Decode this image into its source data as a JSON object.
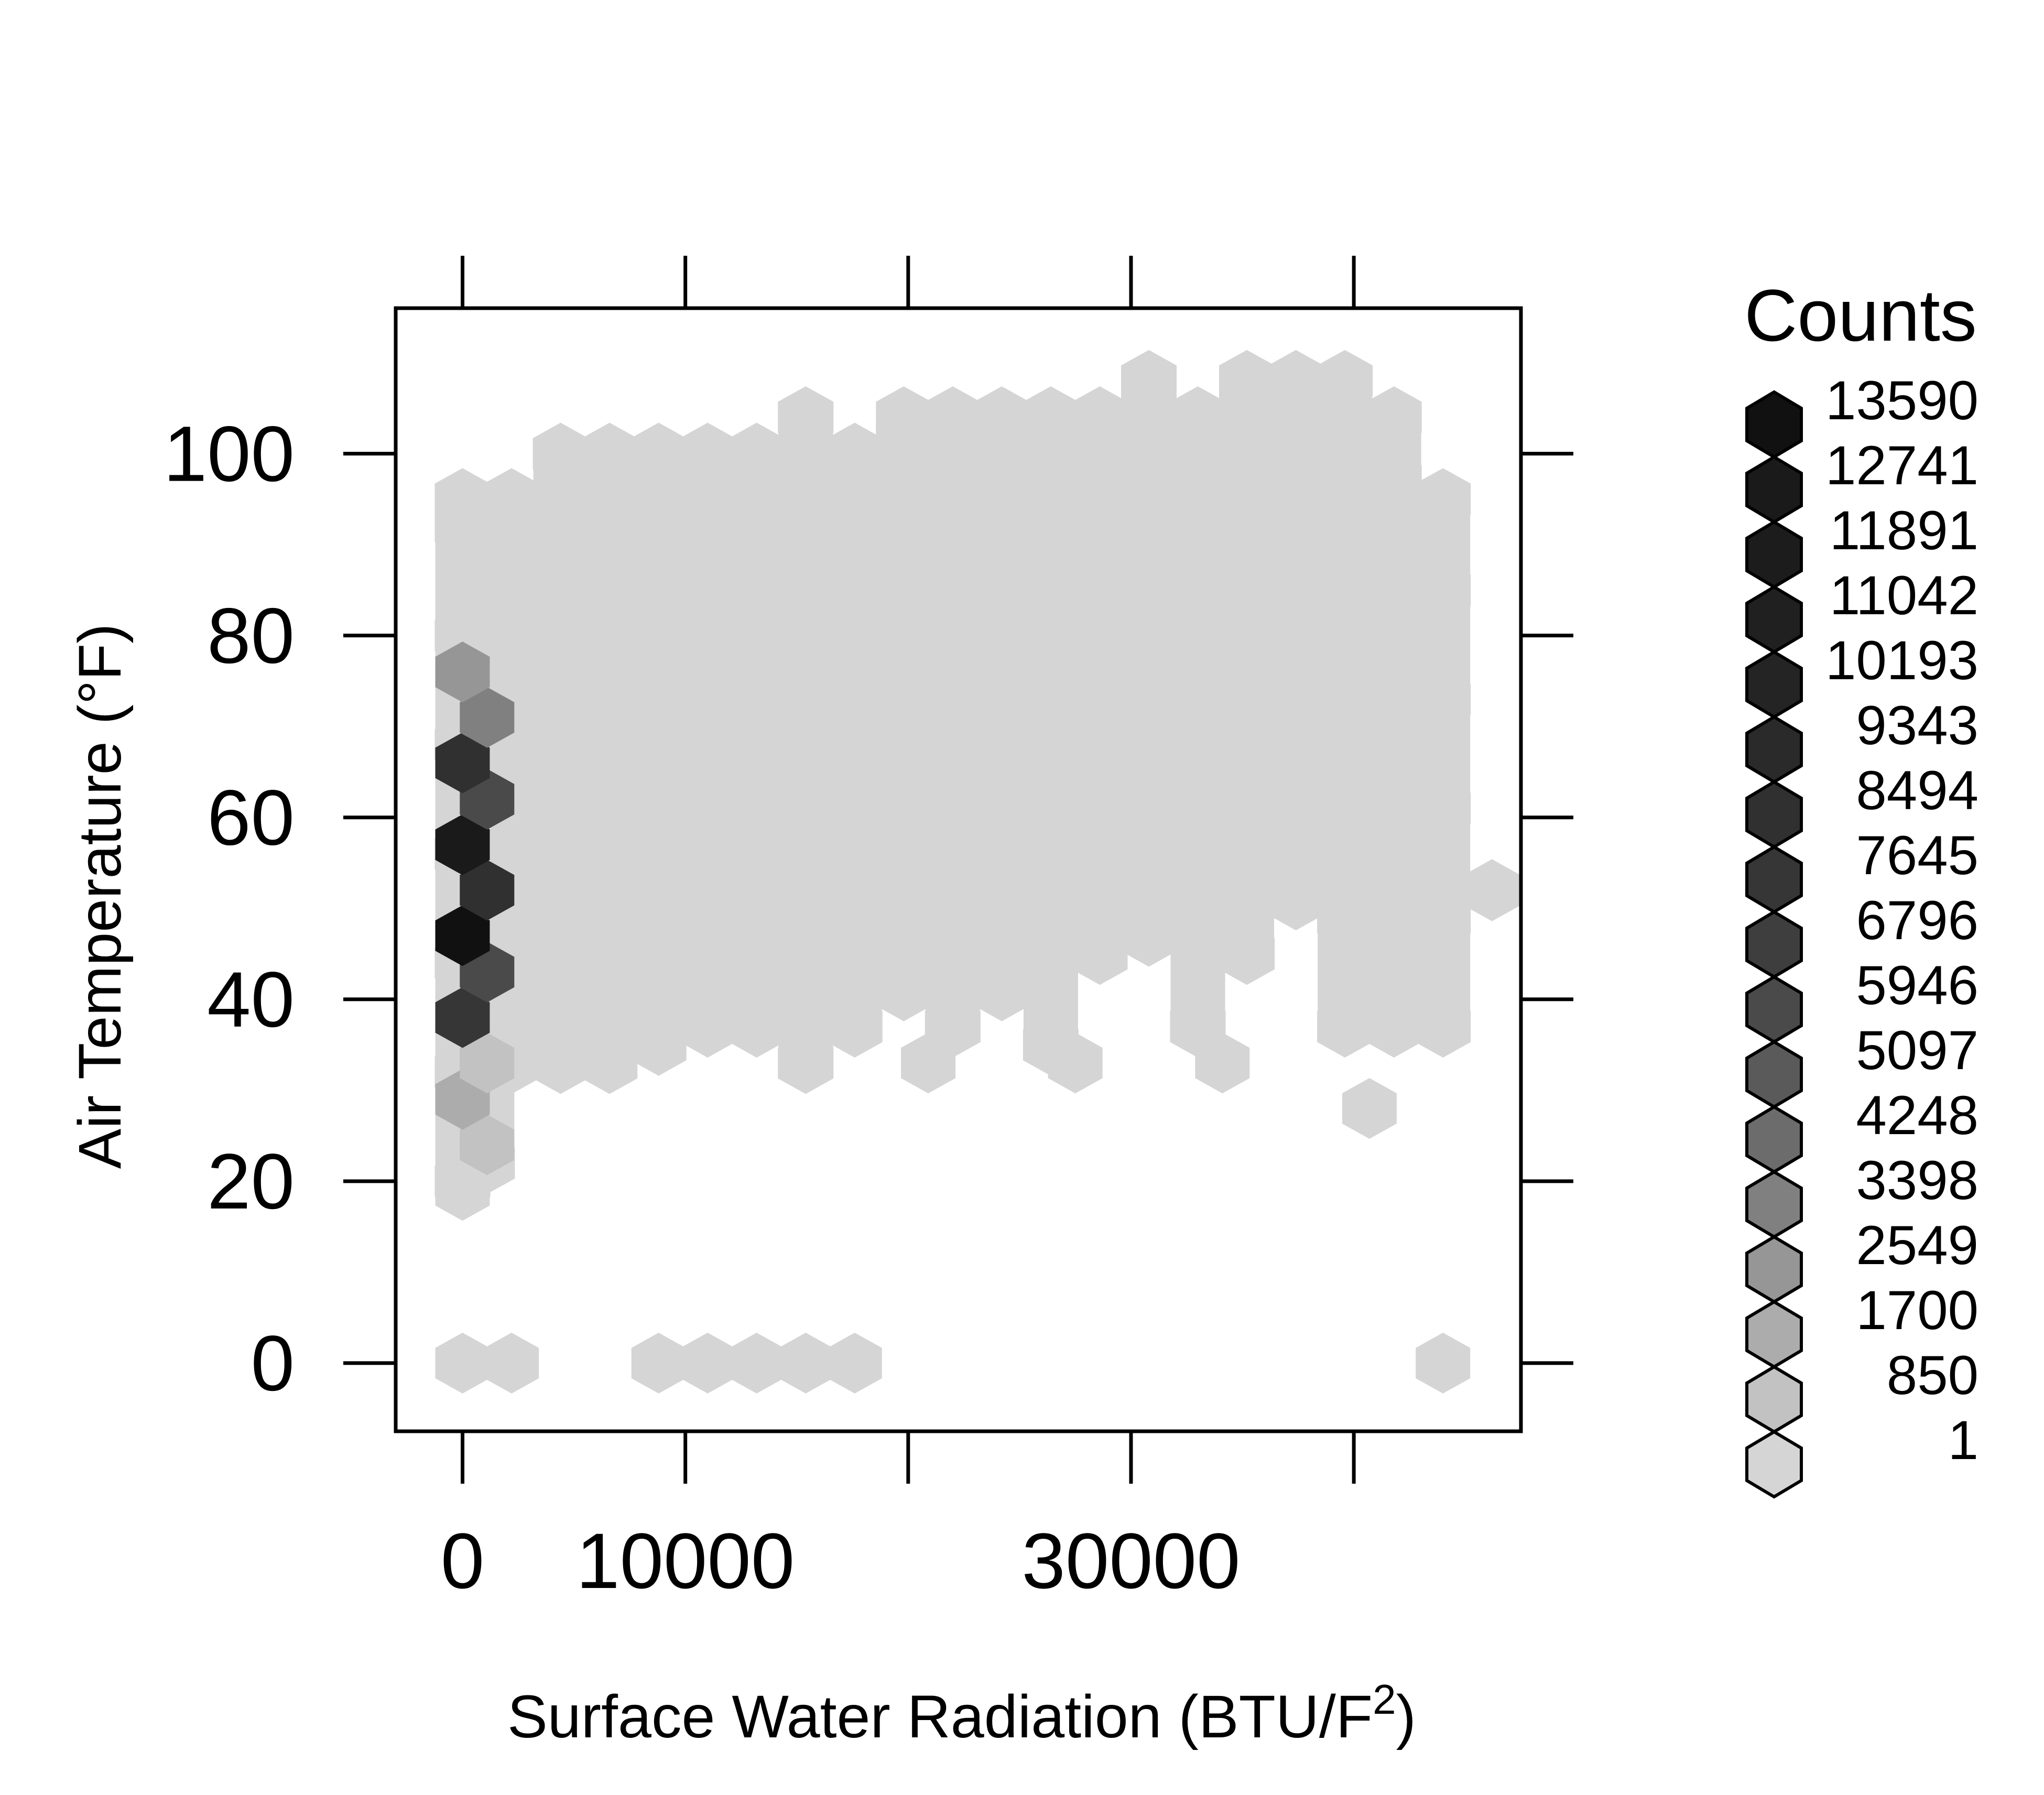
{
  "chart_data": {
    "type": "hexbin",
    "xlabel": "Surface Water Radiation (BTU/F",
    "xlabel_sup": "2",
    "xlabel_end": ")",
    "ylabel": "Air Temperature (°F)",
    "xlim": [
      -3000,
      47500
    ],
    "ylim": [
      -7.5,
      116
    ],
    "x_ticks": [
      0,
      10000,
      20000,
      30000,
      40000
    ],
    "x_tick_labels": [
      "0",
      "10000",
      "",
      "30000",
      ""
    ],
    "y_ticks": [
      0,
      20,
      40,
      60,
      80,
      100
    ],
    "y_tick_labels": [
      "0",
      "20",
      "40",
      "60",
      "80",
      "100"
    ],
    "grid": false,
    "legend": {
      "title": "Counts",
      "placement": "right",
      "entries": [
        {
          "label": "13590",
          "color": "#111111"
        },
        {
          "label": "12741",
          "color": "#1a1a1a"
        },
        {
          "label": "11891",
          "color": "#1c1c1c"
        },
        {
          "label": "11042",
          "color": "#202020"
        },
        {
          "label": "10193",
          "color": "#242424"
        },
        {
          "label": "9343",
          "color": "#2a2a2a"
        },
        {
          "label": "8494",
          "color": "#303030"
        },
        {
          "label": "7645",
          "color": "#363636"
        },
        {
          "label": "6796",
          "color": "#3e3e3e"
        },
        {
          "label": "5946",
          "color": "#4a4a4a"
        },
        {
          "label": "5097",
          "color": "#5a5a5a"
        },
        {
          "label": "4248",
          "color": "#6c6c6c"
        },
        {
          "label": "3398",
          "color": "#808080"
        },
        {
          "label": "2549",
          "color": "#969696"
        },
        {
          "label": "1700",
          "color": "#acacac"
        },
        {
          "label": "850",
          "color": "#c2c2c2"
        },
        {
          "label": "1",
          "color": "#d5d5d5"
        }
      ]
    },
    "background_bins": {
      "color": "#d5d5d5",
      "columns": [
        {
          "x": 0,
          "y_min": 20,
          "y_max": 95
        },
        {
          "x": 1100,
          "y_min": 22,
          "y_max": 92
        },
        {
          "x": 2200,
          "y_min": 33,
          "y_max": 95
        },
        {
          "x": 4400,
          "y_min": 33,
          "y_max": 100
        },
        {
          "x": 6600,
          "y_min": 33,
          "y_max": 100
        },
        {
          "x": 8800,
          "y_min": 35,
          "y_max": 100
        },
        {
          "x": 11000,
          "y_min": 37,
          "y_max": 100
        },
        {
          "x": 13200,
          "y_min": 37,
          "y_max": 100
        },
        {
          "x": 15400,
          "y_min": 33,
          "y_max": 104
        },
        {
          "x": 17600,
          "y_min": 37,
          "y_max": 100
        },
        {
          "x": 19800,
          "y_min": 41,
          "y_max": 104
        },
        {
          "x": 22000,
          "y_min": 37,
          "y_max": 104
        },
        {
          "x": 24200,
          "y_min": 41,
          "y_max": 104
        },
        {
          "x": 26400,
          "y_min": 35,
          "y_max": 104
        },
        {
          "x": 28600,
          "y_min": 45,
          "y_max": 104
        },
        {
          "x": 30800,
          "y_min": 47,
          "y_max": 108
        },
        {
          "x": 33000,
          "y_min": 37,
          "y_max": 104
        },
        {
          "x": 35200,
          "y_min": 45,
          "y_max": 108
        },
        {
          "x": 37400,
          "y_min": 51,
          "y_max": 108
        },
        {
          "x": 39600,
          "y_min": 37,
          "y_max": 108
        },
        {
          "x": 41800,
          "y_min": 37,
          "y_max": 104
        },
        {
          "x": 44000,
          "y_min": 37,
          "y_max": 95
        },
        {
          "x": 46200,
          "y_min": 52,
          "y_max": 52
        }
      ],
      "extra_cells": [
        {
          "x": 0,
          "y": 0
        },
        {
          "x": 2200,
          "y": 0
        },
        {
          "x": 8800,
          "y": 0
        },
        {
          "x": 11000,
          "y": 0
        },
        {
          "x": 13200,
          "y": 0
        },
        {
          "x": 15400,
          "y": 0
        },
        {
          "x": 17600,
          "y": 0
        },
        {
          "x": 44000,
          "y": 0
        },
        {
          "x": 20900,
          "y": 33
        },
        {
          "x": 27500,
          "y": 33
        },
        {
          "x": 34100,
          "y": 33
        },
        {
          "x": 40700,
          "y": 28
        }
      ]
    },
    "dense_bins": [
      {
        "x": 0,
        "y": 19,
        "count": 1
      },
      {
        "x": 1100,
        "y": 24,
        "count": 850
      },
      {
        "x": 0,
        "y": 29,
        "count": 1700
      },
      {
        "x": 1100,
        "y": 33,
        "count": 850
      },
      {
        "x": 0,
        "y": 38,
        "count": 7645
      },
      {
        "x": 1100,
        "y": 43,
        "count": 5946
      },
      {
        "x": 0,
        "y": 47,
        "count": 13590
      },
      {
        "x": 1100,
        "y": 52,
        "count": 8494
      },
      {
        "x": 0,
        "y": 57,
        "count": 12741
      },
      {
        "x": 1100,
        "y": 62,
        "count": 5946
      },
      {
        "x": 0,
        "y": 66,
        "count": 8494
      },
      {
        "x": 1100,
        "y": 71,
        "count": 3398
      },
      {
        "x": 0,
        "y": 76,
        "count": 2549
      }
    ]
  }
}
